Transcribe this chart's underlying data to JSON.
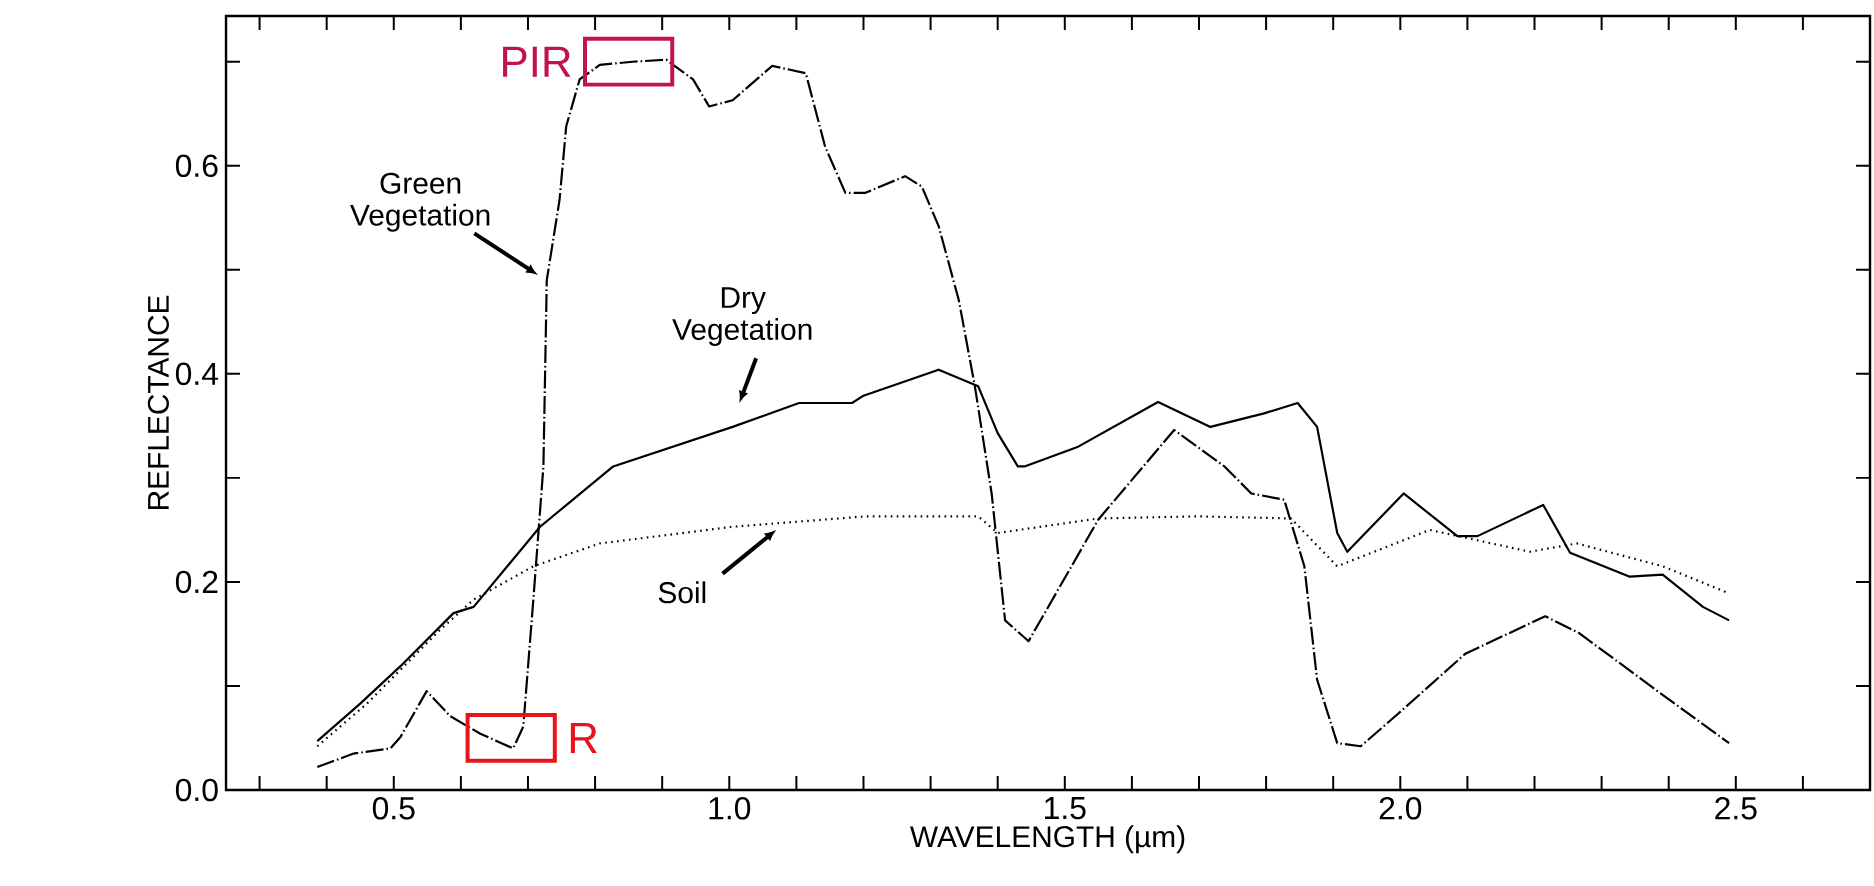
{
  "chart_data": {
    "type": "line",
    "xlabel": "WAVELENGTH (µm)",
    "ylabel": "REFLECTANCE",
    "xlim": [
      0.25,
      2.7
    ],
    "ylim": [
      0,
      0.744
    ],
    "xticks": [
      {
        "value": 0.3,
        "label": null
      },
      {
        "value": 0.4,
        "label": null
      },
      {
        "value": 0.5,
        "label": "0.5"
      },
      {
        "value": 0.6,
        "label": null
      },
      {
        "value": 0.7,
        "label": null
      },
      {
        "value": 0.8,
        "label": null
      },
      {
        "value": 0.9,
        "label": null
      },
      {
        "value": 1.0,
        "label": "1.0"
      },
      {
        "value": 1.1,
        "label": null
      },
      {
        "value": 1.2,
        "label": null
      },
      {
        "value": 1.3,
        "label": null
      },
      {
        "value": 1.4,
        "label": null
      },
      {
        "value": 1.5,
        "label": "1.5"
      },
      {
        "value": 1.6,
        "label": null
      },
      {
        "value": 1.7,
        "label": null
      },
      {
        "value": 1.8,
        "label": null
      },
      {
        "value": 1.9,
        "label": null
      },
      {
        "value": 2.0,
        "label": "2.0"
      },
      {
        "value": 2.1,
        "label": null
      },
      {
        "value": 2.2,
        "label": null
      },
      {
        "value": 2.3,
        "label": null
      },
      {
        "value": 2.4,
        "label": null
      },
      {
        "value": 2.5,
        "label": "2.5"
      },
      {
        "value": 2.6,
        "label": null
      }
    ],
    "yticks": [
      {
        "value": 0.0,
        "label": "0.0"
      },
      {
        "value": 0.1,
        "label": null
      },
      {
        "value": 0.2,
        "label": "0.2"
      },
      {
        "value": 0.3,
        "label": null
      },
      {
        "value": 0.4,
        "label": "0.4"
      },
      {
        "value": 0.5,
        "label": null
      },
      {
        "value": 0.6,
        "label": "0.6"
      },
      {
        "value": 0.7,
        "label": null
      }
    ],
    "marker": "none",
    "series": [
      {
        "name": "Green Vegetation",
        "color": "#000000",
        "line_style": "dashed",
        "x": [
          0.386,
          0.44,
          0.495,
          0.51,
          0.549,
          0.584,
          0.629,
          0.678,
          0.693,
          0.708,
          0.723,
          0.728,
          0.747,
          0.757,
          0.777,
          0.807,
          0.856,
          0.906,
          0.946,
          0.97,
          1.005,
          1.064,
          1.114,
          1.143,
          1.173,
          1.203,
          1.262,
          1.287,
          1.312,
          1.342,
          1.366,
          1.391,
          1.411,
          1.446,
          1.55,
          1.663,
          1.738,
          1.778,
          1.827,
          1.857,
          1.876,
          1.906,
          1.941,
          1.998,
          2.097,
          2.216,
          2.266,
          2.394,
          2.49
        ],
        "values": [
          0.022,
          0.035,
          0.04,
          0.051,
          0.095,
          0.071,
          0.054,
          0.04,
          0.061,
          0.183,
          0.311,
          0.49,
          0.567,
          0.638,
          0.683,
          0.697,
          0.7,
          0.702,
          0.683,
          0.657,
          0.663,
          0.696,
          0.689,
          0.618,
          0.574,
          0.574,
          0.59,
          0.58,
          0.542,
          0.471,
          0.388,
          0.285,
          0.163,
          0.143,
          0.26,
          0.346,
          0.311,
          0.285,
          0.279,
          0.215,
          0.106,
          0.045,
          0.042,
          0.074,
          0.131,
          0.167,
          0.151,
          0.09,
          0.045
        ]
      },
      {
        "name": "Dry Vegetation",
        "color": "#000000",
        "line_style": "solid",
        "x": [
          0.386,
          0.45,
          0.51,
          0.589,
          0.619,
          0.718,
          0.827,
          1.005,
          1.104,
          1.183,
          1.2,
          1.312,
          1.371,
          1.4,
          1.43,
          1.44,
          1.52,
          1.639,
          1.717,
          1.797,
          1.847,
          1.876,
          1.906,
          1.921,
          2.005,
          2.085,
          2.115,
          2.213,
          2.253,
          2.342,
          2.391,
          2.451,
          2.49
        ],
        "values": [
          0.047,
          0.083,
          0.119,
          0.17,
          0.176,
          0.253,
          0.311,
          0.349,
          0.372,
          0.372,
          0.379,
          0.404,
          0.388,
          0.343,
          0.311,
          0.311,
          0.33,
          0.373,
          0.349,
          0.362,
          0.372,
          0.349,
          0.247,
          0.229,
          0.285,
          0.244,
          0.244,
          0.274,
          0.228,
          0.205,
          0.207,
          0.176,
          0.163
        ]
      },
      {
        "name": "Soil",
        "color": "#000000",
        "line_style": "dotted",
        "x": [
          0.386,
          0.46,
          0.569,
          0.619,
          0.708,
          0.807,
          1.005,
          1.203,
          1.371,
          1.4,
          1.55,
          1.698,
          1.837,
          1.906,
          2.044,
          2.193,
          2.263,
          2.391,
          2.49
        ],
        "values": [
          0.042,
          0.083,
          0.154,
          0.183,
          0.215,
          0.237,
          0.253,
          0.263,
          0.263,
          0.247,
          0.261,
          0.263,
          0.261,
          0.215,
          0.25,
          0.229,
          0.237,
          0.215,
          0.189
        ]
      }
    ],
    "annotations": [
      {
        "text": "PIR",
        "x": 0.85,
        "y": 0.7
      },
      {
        "text": "R",
        "x": 0.675,
        "y": 0.05
      }
    ]
  }
}
